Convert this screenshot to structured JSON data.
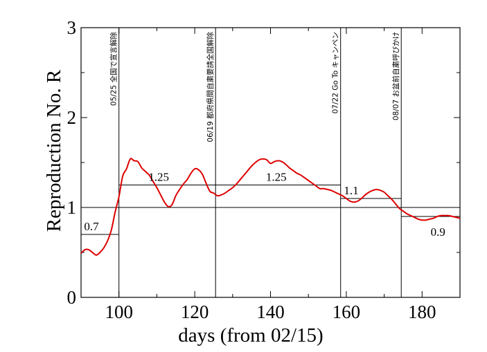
{
  "chart_data": {
    "type": "line",
    "title": "",
    "xlabel": "days (from 02/15)",
    "ylabel": "Reproduction No.  R",
    "xlim": [
      90,
      190
    ],
    "ylim": [
      0,
      3
    ],
    "xticks": [
      100,
      120,
      140,
      160,
      180
    ],
    "yticks": [
      0,
      1,
      2,
      3
    ],
    "grid": false,
    "legend": "none",
    "series_color": "#dd0000",
    "reference_line": {
      "y": 1
    },
    "series": [
      {
        "x": [
          90,
          91,
          92,
          93,
          94,
          95,
          96,
          97,
          98,
          99,
          100,
          101,
          102,
          103,
          104,
          105,
          106,
          107,
          108,
          109,
          110,
          111,
          112,
          113,
          114,
          115,
          116,
          117,
          118,
          119,
          120,
          121,
          122,
          123,
          124,
          125,
          126,
          127,
          128,
          129,
          130,
          131,
          132,
          133,
          134,
          135,
          136,
          137,
          138,
          139,
          140,
          141,
          142,
          143,
          144,
          145,
          146,
          147,
          148,
          149,
          150,
          151,
          152,
          153,
          154,
          155,
          156,
          157,
          158,
          159,
          160,
          161,
          162,
          163,
          164,
          165,
          166,
          167,
          168,
          169,
          170,
          171,
          172,
          173,
          174,
          175,
          176,
          177,
          178,
          179,
          180,
          181,
          182,
          183,
          184,
          185,
          186,
          187,
          188,
          189,
          190
        ],
        "y": [
          0.49,
          0.53,
          0.53,
          0.5,
          0.47,
          0.5,
          0.55,
          0.63,
          0.75,
          0.95,
          1.12,
          1.35,
          1.43,
          1.54,
          1.52,
          1.51,
          1.44,
          1.4,
          1.36,
          1.29,
          1.22,
          1.14,
          1.06,
          1.01,
          1.03,
          1.13,
          1.2,
          1.26,
          1.31,
          1.38,
          1.43,
          1.42,
          1.37,
          1.27,
          1.18,
          1.16,
          1.13,
          1.14,
          1.16,
          1.19,
          1.22,
          1.26,
          1.31,
          1.36,
          1.41,
          1.46,
          1.5,
          1.53,
          1.54,
          1.53,
          1.49,
          1.51,
          1.52,
          1.51,
          1.48,
          1.44,
          1.41,
          1.38,
          1.36,
          1.33,
          1.3,
          1.27,
          1.24,
          1.21,
          1.21,
          1.2,
          1.19,
          1.17,
          1.15,
          1.13,
          1.1,
          1.07,
          1.06,
          1.07,
          1.1,
          1.14,
          1.17,
          1.19,
          1.2,
          1.19,
          1.17,
          1.13,
          1.09,
          1.04,
          0.99,
          0.96,
          0.93,
          0.91,
          0.89,
          0.87,
          0.86,
          0.86,
          0.87,
          0.88,
          0.9,
          0.91,
          0.91,
          0.91,
          0.9,
          0.89,
          0.88
        ]
      }
    ],
    "events": [
      {
        "x": 100,
        "label": "05/25 全国で宣言解除"
      },
      {
        "x": 125.5,
        "label": "06/19 都府県間自粛要請全国解除"
      },
      {
        "x": 158.5,
        "label": "07/22 Go To キャンペン"
      },
      {
        "x": 174.5,
        "label": "08/07 お盆前自粛呼びかけ"
      }
    ],
    "segments": [
      {
        "x_start": 90,
        "x_end": 100,
        "value": 0.7,
        "label": "0.7"
      },
      {
        "x_start": 100,
        "x_end": 125.5,
        "value": 1.25,
        "label": "1.25"
      },
      {
        "x_start": 125.5,
        "x_end": 158.5,
        "value": 1.25,
        "label": "1.25"
      },
      {
        "x_start": 158.5,
        "x_end": 174.5,
        "value": 1.1,
        "label": "1.1"
      },
      {
        "x_start": 174.5,
        "x_end": 190,
        "value": 0.9,
        "label": "0.9"
      }
    ]
  }
}
